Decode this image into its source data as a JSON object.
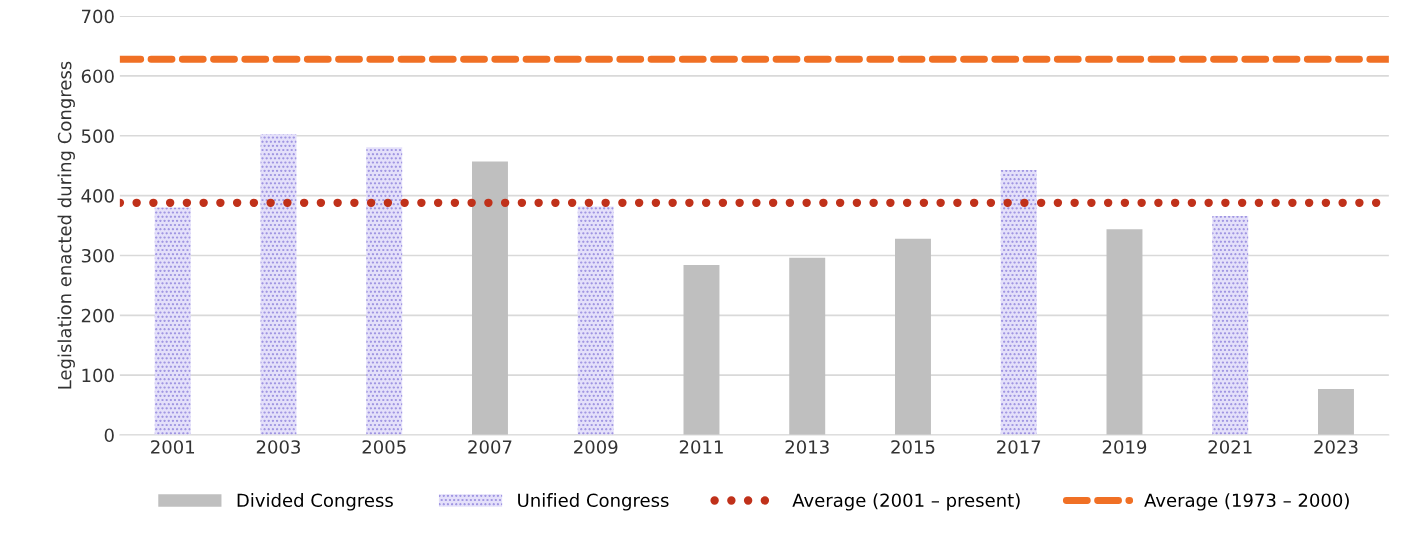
{
  "chart_data": {
    "type": "bar",
    "ylabel": "Legislation enacted during Congress",
    "categories": [
      "2001",
      "2003",
      "2005",
      "2007",
      "2009",
      "2011",
      "2013",
      "2015",
      "2017",
      "2019",
      "2021",
      "2023"
    ],
    "series": [
      {
        "name": "Divided Congress",
        "color": "#bfbfbf",
        "values": [
          null,
          null,
          null,
          457,
          null,
          284,
          296,
          328,
          null,
          344,
          null,
          77
        ]
      },
      {
        "name": "Unified Congress",
        "color": "#9a8fe0",
        "values": [
          380,
          503,
          481,
          null,
          382,
          null,
          null,
          null,
          443,
          null,
          366,
          null
        ]
      }
    ],
    "ref_lines": [
      {
        "axis": "y",
        "value": 388,
        "label": "Average (2001 – present)",
        "color": "#c0311a",
        "line_style": "dotted"
      },
      {
        "axis": "y",
        "value": 628,
        "label": "Average (1973 – 2000)",
        "color": "#f07025",
        "line_style": "dashed"
      }
    ],
    "ylim": [
      0,
      700
    ],
    "yticks": [
      0,
      100,
      200,
      300,
      400,
      500,
      600,
      700
    ],
    "grid": "y",
    "legend": "bottom"
  }
}
